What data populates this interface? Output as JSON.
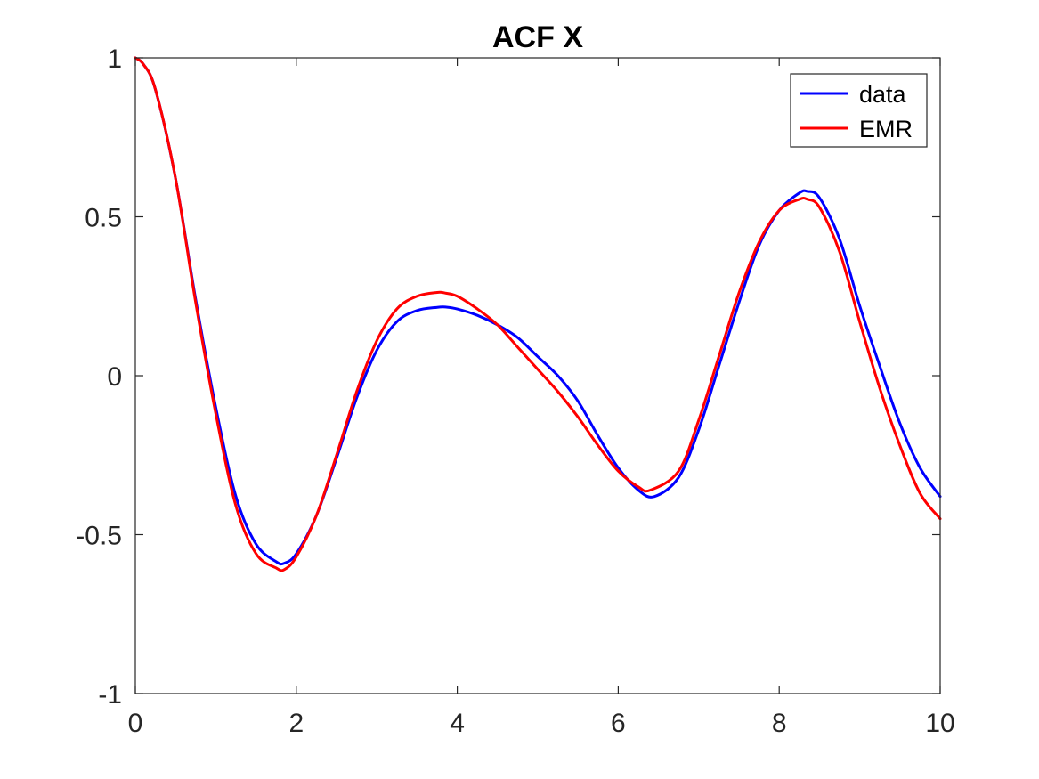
{
  "chart_data": {
    "type": "line",
    "title": "ACF X",
    "xlabel": "",
    "ylabel": "",
    "xlim": [
      0,
      10
    ],
    "ylim": [
      -1,
      1
    ],
    "xticks": [
      0,
      2,
      4,
      6,
      8,
      10
    ],
    "xtick_labels": [
      "0",
      "2",
      "4",
      "6",
      "8",
      "10"
    ],
    "yticks": [
      -1,
      -0.5,
      0,
      0.5,
      1
    ],
    "ytick_labels": [
      "-1",
      "-0.5",
      "0",
      "0.5",
      "1"
    ],
    "grid": false,
    "legend_position": "top-right",
    "series": [
      {
        "name": "data",
        "color": "#0000ff",
        "x": [
          0,
          0.1,
          0.25,
          0.5,
          0.75,
          1.0,
          1.25,
          1.5,
          1.75,
          1.85,
          2.0,
          2.25,
          2.5,
          2.75,
          3.0,
          3.25,
          3.5,
          3.75,
          3.85,
          4.0,
          4.25,
          4.5,
          4.75,
          5.0,
          5.25,
          5.5,
          5.75,
          6.0,
          6.25,
          6.45,
          6.75,
          7.0,
          7.25,
          7.5,
          7.75,
          8.0,
          8.25,
          8.35,
          8.5,
          8.75,
          9.0,
          9.25,
          9.5,
          9.75,
          10.0
        ],
        "y": [
          1.0,
          0.98,
          0.9,
          0.62,
          0.24,
          -0.1,
          -0.38,
          -0.53,
          -0.585,
          -0.59,
          -0.56,
          -0.44,
          -0.26,
          -0.07,
          0.08,
          0.17,
          0.205,
          0.215,
          0.216,
          0.21,
          0.19,
          0.16,
          0.12,
          0.06,
          0.0,
          -0.08,
          -0.19,
          -0.29,
          -0.36,
          -0.38,
          -0.32,
          -0.17,
          0.03,
          0.23,
          0.41,
          0.52,
          0.575,
          0.58,
          0.56,
          0.43,
          0.22,
          0.03,
          -0.15,
          -0.29,
          -0.38
        ]
      },
      {
        "name": "EMR",
        "color": "#ff0000",
        "x": [
          0,
          0.1,
          0.25,
          0.5,
          0.75,
          1.0,
          1.25,
          1.5,
          1.75,
          1.85,
          2.0,
          2.25,
          2.5,
          2.75,
          3.0,
          3.25,
          3.5,
          3.75,
          3.85,
          4.0,
          4.25,
          4.5,
          4.75,
          5.0,
          5.25,
          5.5,
          5.75,
          6.0,
          6.25,
          6.4,
          6.75,
          7.0,
          7.25,
          7.5,
          7.75,
          8.0,
          8.25,
          8.35,
          8.5,
          8.75,
          9.0,
          9.25,
          9.5,
          9.75,
          10.0
        ],
        "y": [
          1.0,
          0.98,
          0.9,
          0.62,
          0.23,
          -0.12,
          -0.41,
          -0.56,
          -0.605,
          -0.61,
          -0.57,
          -0.44,
          -0.25,
          -0.05,
          0.11,
          0.21,
          0.25,
          0.262,
          0.26,
          0.25,
          0.21,
          0.16,
          0.09,
          0.02,
          -0.05,
          -0.13,
          -0.22,
          -0.3,
          -0.35,
          -0.36,
          -0.3,
          -0.14,
          0.06,
          0.26,
          0.42,
          0.52,
          0.555,
          0.555,
          0.53,
          0.39,
          0.17,
          -0.04,
          -0.22,
          -0.37,
          -0.45
        ]
      }
    ]
  }
}
